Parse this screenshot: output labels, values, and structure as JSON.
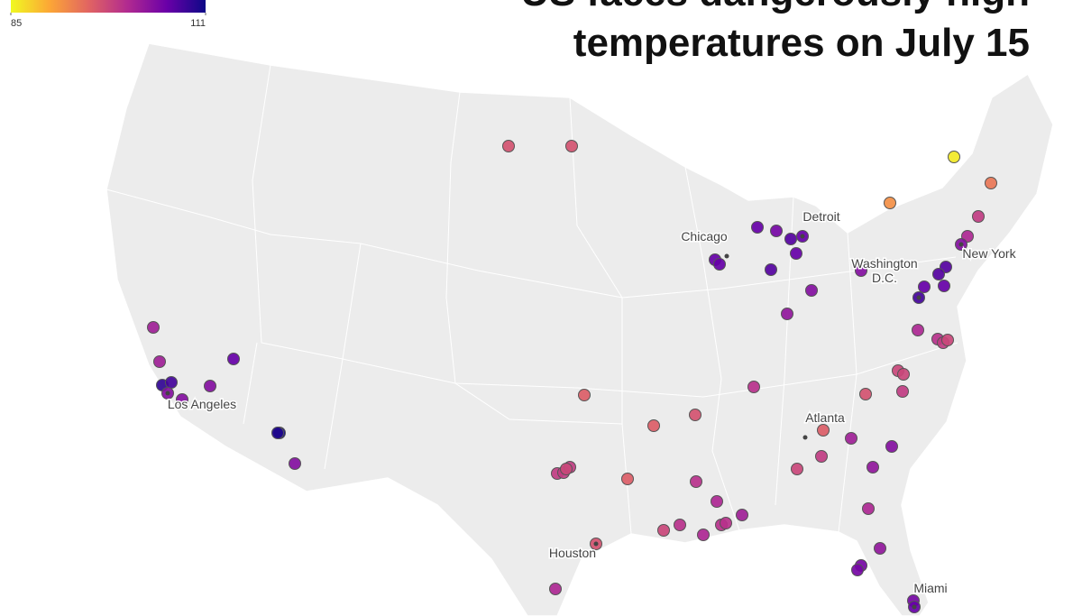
{
  "chart_data": {
    "type": "map",
    "title": [
      "US faces dangerously high",
      "temperatures on July 15"
    ],
    "colorbar": {
      "range": [
        85,
        111
      ],
      "ticks": [
        85,
        111
      ],
      "colors": [
        "#f0f921",
        "#fca636",
        "#e16462",
        "#b12a90",
        "#6a00a8",
        "#0d0887"
      ]
    },
    "cities": [
      "Los Angeles",
      "Chicago",
      "Detroit",
      "Washington D.C.",
      "New York",
      "Atlanta",
      "Houston",
      "Miami"
    ],
    "values": [
      97,
      97,
      86,
      92,
      94,
      99,
      101,
      104,
      106,
      105,
      107,
      106,
      106,
      107,
      106,
      106,
      104,
      103,
      107,
      107,
      106,
      106,
      108,
      101,
      100,
      99,
      98,
      104,
      98,
      98,
      99,
      97,
      100,
      96,
      102,
      104,
      99,
      98,
      103,
      96,
      96,
      97,
      96,
      99,
      99,
      99,
      98,
      100,
      101,
      102,
      100,
      100,
      100,
      101,
      98,
      97,
      101,
      101,
      103,
      105,
      105,
      105,
      106,
      102,
      102,
      109,
      108,
      104,
      104,
      104,
      106,
      111,
      110,
      104
    ]
  }
}
